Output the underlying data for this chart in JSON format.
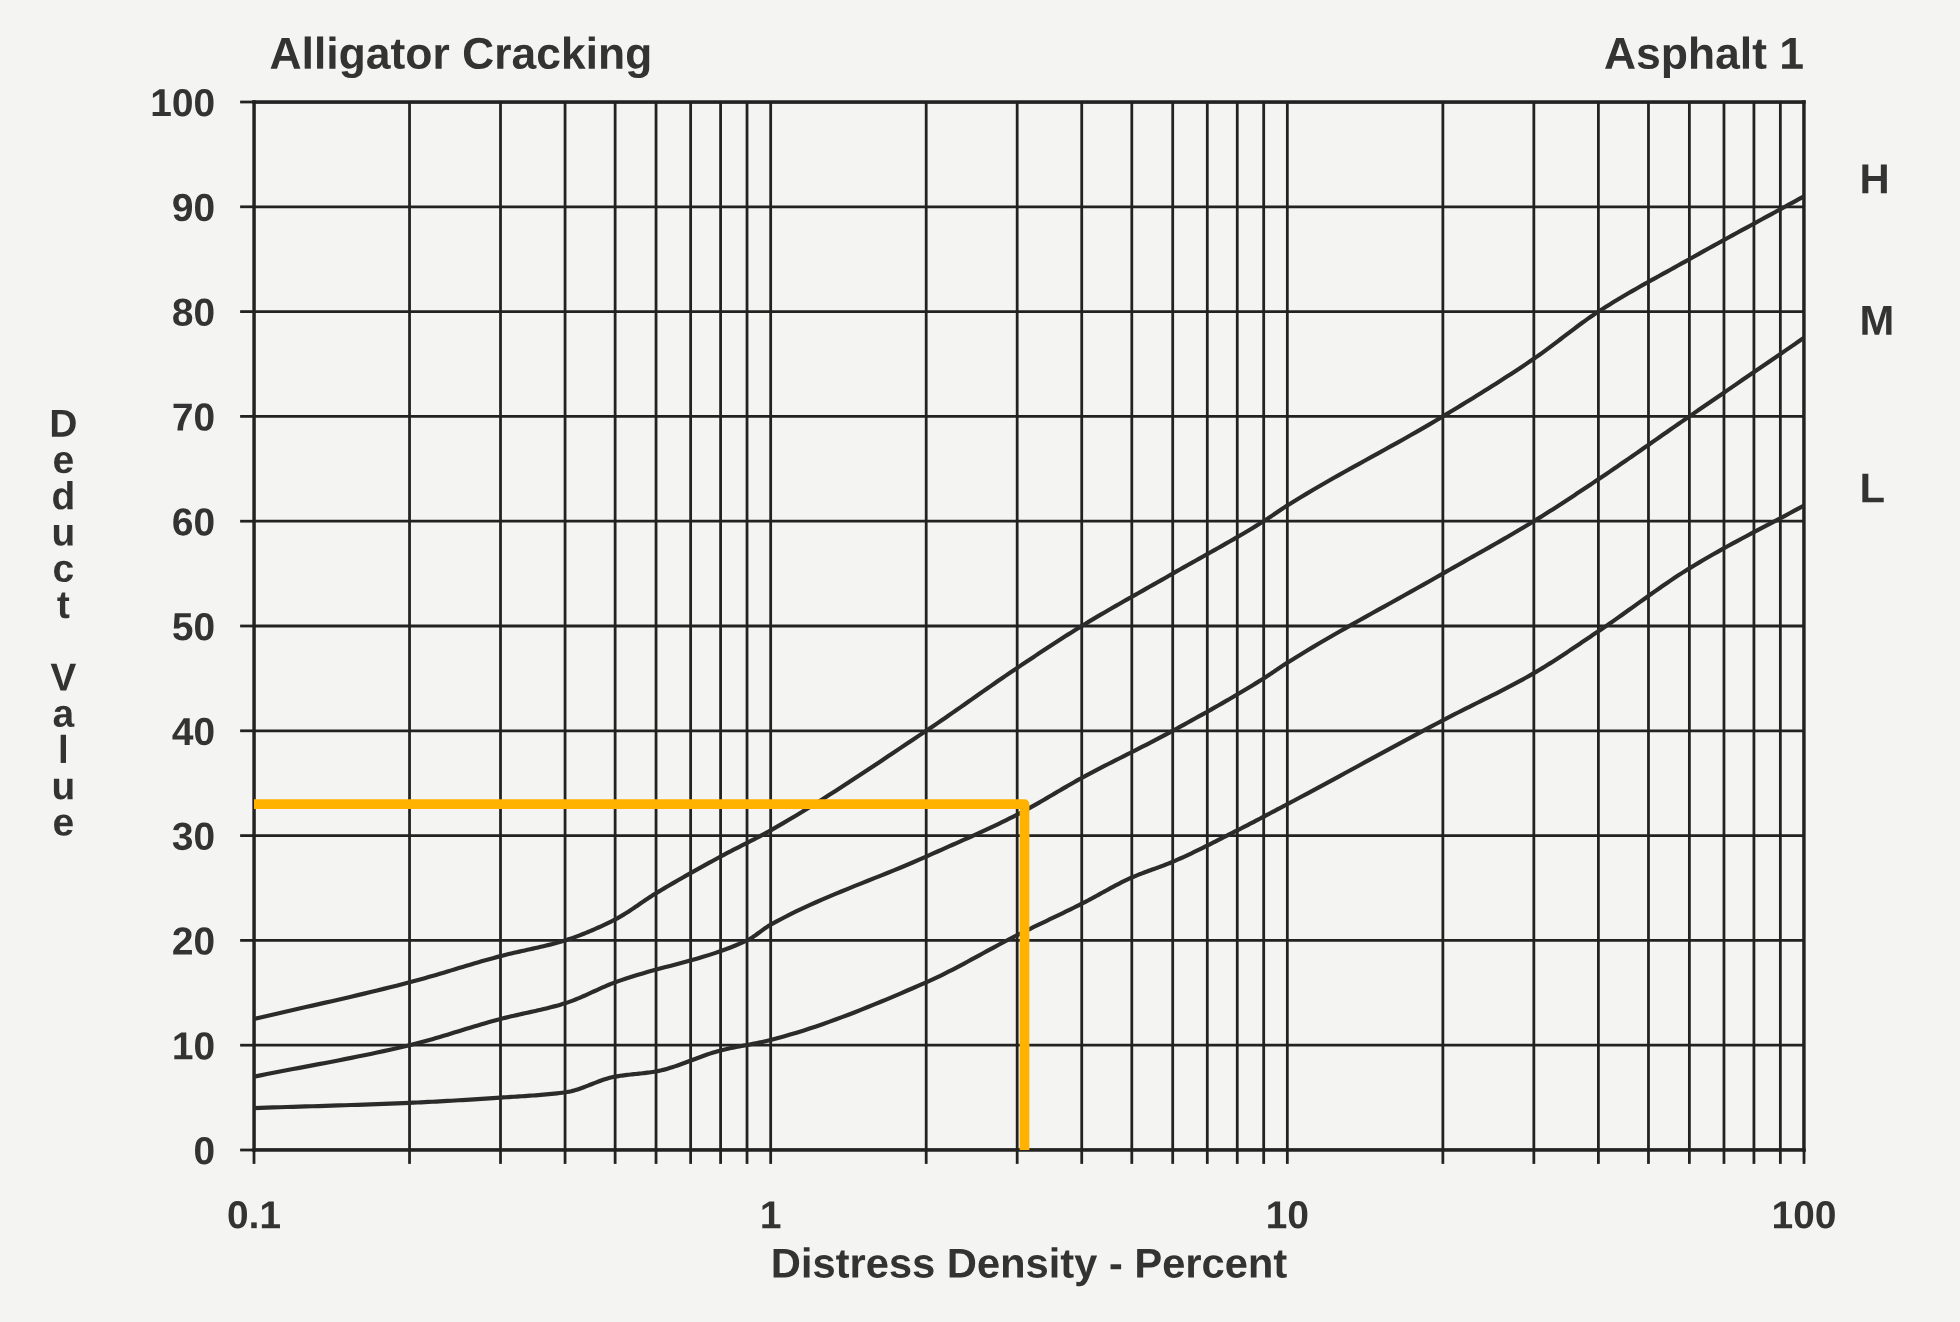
{
  "chart_data": {
    "type": "line",
    "title": "Alligator Cracking",
    "subtitle": "Asphalt 1",
    "xlabel": "Distress Density - Percent",
    "ylabel": "Deduct Value",
    "log": "x",
    "xlim": [
      0.1,
      100
    ],
    "xticks": [
      0.1,
      {
        "value": 0.2,
        "label": null
      },
      {
        "value": 0.3,
        "label": null
      },
      {
        "value": 0.4,
        "label": null
      },
      {
        "value": 0.5,
        "label": null
      },
      {
        "value": 0.6,
        "label": null
      },
      {
        "value": 0.7,
        "label": null
      },
      {
        "value": 0.8,
        "label": null
      },
      {
        "value": 0.9,
        "label": null
      },
      1,
      {
        "value": 2,
        "label": null
      },
      {
        "value": 3,
        "label": null
      },
      {
        "value": 4,
        "label": null
      },
      {
        "value": 5,
        "label": null
      },
      {
        "value": 6,
        "label": null
      },
      {
        "value": 7,
        "label": null
      },
      {
        "value": 8,
        "label": null
      },
      {
        "value": 9,
        "label": null
      },
      10,
      {
        "value": 20,
        "label": null
      },
      {
        "value": 30,
        "label": null
      },
      {
        "value": 40,
        "label": null
      },
      {
        "value": 50,
        "label": null
      },
      {
        "value": 60,
        "label": null
      },
      {
        "value": 70,
        "label": null
      },
      {
        "value": 80,
        "label": null
      },
      {
        "value": 90,
        "label": null
      },
      100
    ],
    "ylim": [
      0,
      100
    ],
    "yticks": [
      0,
      10,
      20,
      30,
      40,
      50,
      60,
      70,
      80,
      90,
      100
    ],
    "grid": true,
    "series": [
      {
        "name": "H",
        "color": "#2b2b2b",
        "x": [
          0.1,
          0.2,
          0.3,
          0.4,
          0.5,
          0.6,
          0.8,
          1,
          2,
          3,
          4,
          6,
          9,
          10,
          20,
          30,
          40,
          60,
          100
        ],
        "values": [
          12.5,
          16,
          18.5,
          20,
          22,
          24.5,
          28,
          30.5,
          40,
          46,
          50,
          55,
          60,
          61.5,
          70,
          75.5,
          80,
          85,
          91
        ]
      },
      {
        "name": "M",
        "color": "#2b2b2b",
        "x": [
          0.1,
          0.2,
          0.3,
          0.4,
          0.5,
          0.9,
          1,
          2,
          3,
          4,
          6,
          9,
          10,
          20,
          30,
          40,
          60,
          100
        ],
        "values": [
          7,
          10,
          12.5,
          14,
          16,
          20,
          21.5,
          28,
          32,
          35.5,
          40,
          45,
          46.5,
          55,
          60,
          64,
          70,
          77.5
        ]
      },
      {
        "name": "L",
        "color": "#2b2b2b",
        "x": [
          0.1,
          0.2,
          0.3,
          0.4,
          0.5,
          0.6,
          0.8,
          1,
          2,
          3,
          4,
          5,
          6,
          8,
          10,
          20,
          30,
          40,
          60,
          100
        ],
        "values": [
          4,
          4.5,
          5,
          5.5,
          7,
          7.5,
          9.5,
          10.5,
          16,
          20.5,
          23.5,
          26,
          27.5,
          30.5,
          33,
          41,
          45.5,
          49.5,
          55.5,
          61.5
        ]
      },
      {
        "color": "#ffb300",
        "x": [
          0.1,
          3.1,
          3.1
        ],
        "values": [
          33,
          33,
          0
        ]
      }
    ]
  }
}
